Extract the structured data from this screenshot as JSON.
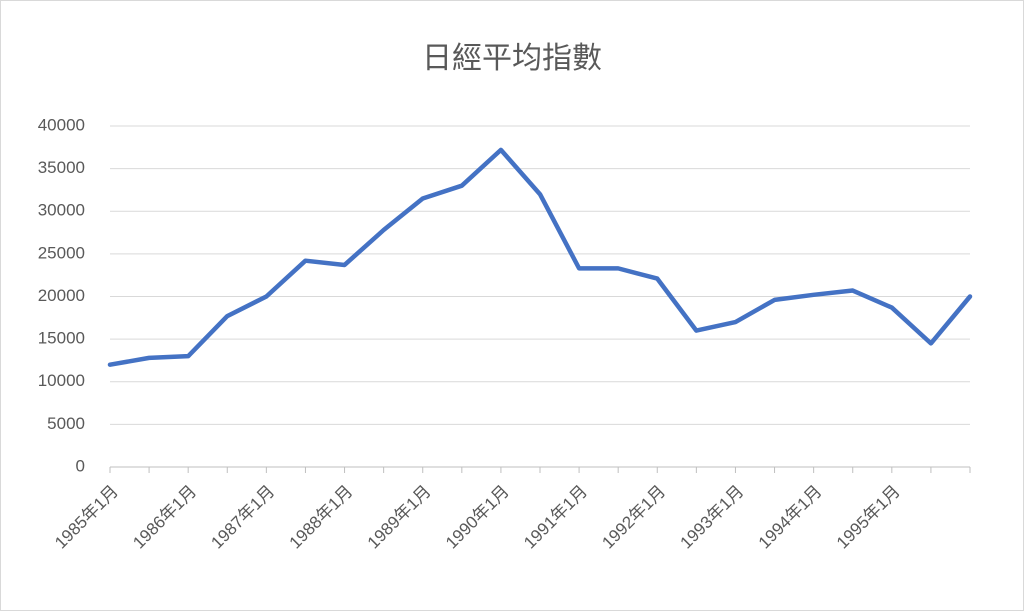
{
  "chart_data": {
    "type": "line",
    "title": "日經平均指數",
    "categories": [
      "1985年1月",
      null,
      "1986年1月",
      null,
      "1987年1月",
      null,
      "1988年1月",
      null,
      "1989年1月",
      null,
      "1990年1月",
      null,
      "1991年1月",
      null,
      "1992年1月",
      null,
      "1993年1月",
      null,
      "1994年1月",
      null,
      "1995年1月",
      null,
      null
    ],
    "series": [
      {
        "name": "日經平均指數",
        "color": "#4472c4",
        "values": [
          12000,
          12800,
          13000,
          17700,
          20000,
          24200,
          23700,
          27800,
          31500,
          33000,
          37200,
          32000,
          23300,
          23300,
          22100,
          16000,
          17000,
          19600,
          20200,
          20700,
          18700,
          14500,
          20000
        ]
      }
    ],
    "ylim": [
      0,
      40000
    ],
    "yticks": [
      0,
      5000,
      10000,
      15000,
      20000,
      25000,
      30000,
      35000,
      40000
    ],
    "grid": true
  }
}
